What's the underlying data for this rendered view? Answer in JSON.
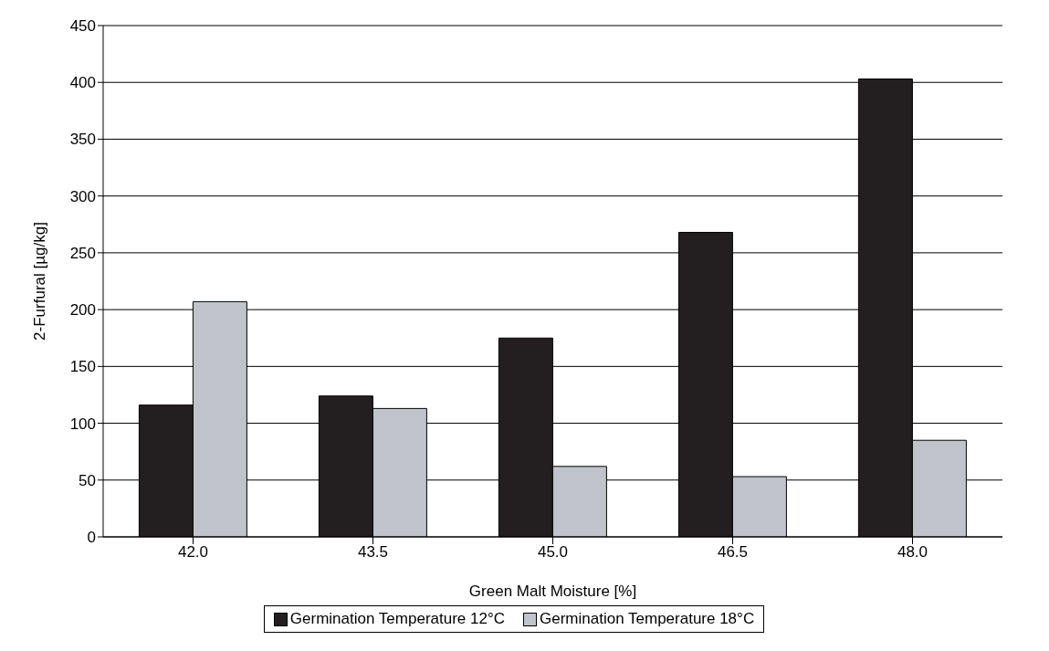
{
  "chart_data": {
    "type": "bar",
    "xlabel": "Green Malt Moisture [%]",
    "ylabel": "2-Furfural [µg/kg]",
    "categories": [
      "42.0",
      "43.5",
      "45.0",
      "46.5",
      "48.0"
    ],
    "series": [
      {
        "name": "Germination Temperature 12°C",
        "color": "#231f20",
        "values": [
          116,
          124,
          175,
          268,
          403
        ]
      },
      {
        "name": "Germination Temperature 18°C",
        "color": "#c0c4ca",
        "values": [
          207,
          113,
          62,
          53,
          85
        ]
      }
    ],
    "ylim": [
      0,
      450
    ],
    "yticks": [
      0,
      50,
      100,
      150,
      200,
      250,
      300,
      350,
      400,
      450
    ],
    "grid": "y",
    "legend": "bottom"
  }
}
